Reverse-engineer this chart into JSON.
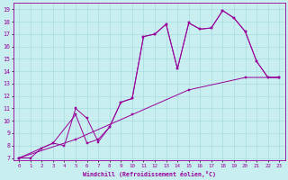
{
  "xlabel": "Windchill (Refroidissement éolien,°C)",
  "ylabel": "",
  "bg_color": "#c8eef0",
  "line_color": "#990099",
  "grid_color": "#a0d8dc",
  "xlim": [
    -0.5,
    23.5
  ],
  "ylim": [
    6.8,
    19.5
  ],
  "xticks": [
    0,
    1,
    2,
    3,
    4,
    5,
    6,
    7,
    8,
    9,
    10,
    11,
    12,
    13,
    14,
    15,
    16,
    17,
    18,
    19,
    20,
    21,
    22,
    23
  ],
  "yticks": [
    7,
    8,
    9,
    10,
    11,
    12,
    13,
    14,
    15,
    16,
    17,
    18,
    19
  ],
  "line1": {
    "x": [
      0,
      1,
      2,
      3,
      4,
      5,
      6,
      7,
      8,
      9,
      10,
      11,
      12,
      13,
      14,
      15,
      16,
      17,
      18,
      19,
      20,
      21,
      22,
      23
    ],
    "y": [
      7,
      7,
      7.8,
      8.2,
      8.0,
      11.0,
      10.2,
      8.3,
      9.5,
      11.5,
      11.8,
      16.8,
      17.0,
      17.8,
      14.2,
      17.9,
      17.4,
      17.5,
      18.9,
      18.3,
      17.2,
      14.8,
      13.5,
      13.5
    ]
  },
  "line2": {
    "x": [
      0,
      5,
      10,
      15,
      20,
      23
    ],
    "y": [
      7,
      8.5,
      10.5,
      12.5,
      13.5,
      13.5
    ]
  },
  "line3": {
    "x": [
      0,
      3,
      5,
      6,
      7,
      8,
      9,
      10,
      11,
      12,
      13,
      14,
      15,
      16,
      17,
      18,
      19,
      20,
      21,
      22,
      23
    ],
    "y": [
      7,
      8.2,
      10.5,
      8.2,
      8.5,
      9.5,
      11.5,
      11.8,
      16.8,
      17.0,
      17.8,
      14.2,
      17.9,
      17.4,
      17.5,
      18.9,
      18.3,
      17.2,
      14.8,
      13.5,
      13.5
    ]
  }
}
